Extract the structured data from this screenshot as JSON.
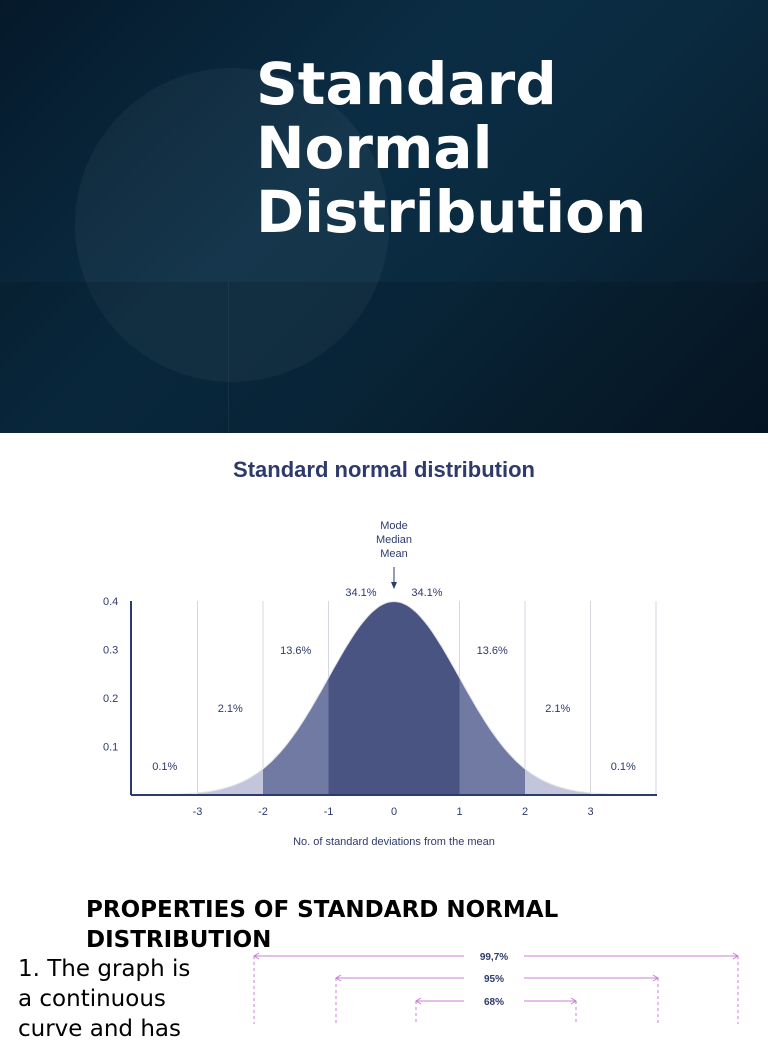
{
  "hero": {
    "title_lines": [
      "Standard",
      "Normal",
      "Distribution"
    ]
  },
  "chart_data": {
    "type": "area",
    "title": "Standard normal distribution",
    "xlabel": "No. of standard deviations from the mean",
    "ylabel": "",
    "x_ticks": [
      "-3",
      "-2",
      "-1",
      "0",
      "1",
      "2",
      "3"
    ],
    "y_ticks": [
      "0.1",
      "0.2",
      "0.3",
      "0.4"
    ],
    "xlim": [
      -4,
      4
    ],
    "ylim": [
      0,
      0.4
    ],
    "peak_annotation": [
      "Mode",
      "Median",
      "Mean"
    ],
    "regions": [
      {
        "from": -4,
        "to": -3,
        "percent": "0.1%",
        "color": "#ffffff"
      },
      {
        "from": -3,
        "to": -2,
        "percent": "2.1%",
        "color": "#c3c6da"
      },
      {
        "from": -2,
        "to": -1,
        "percent": "13.6%",
        "color": "#707aa2"
      },
      {
        "from": -1,
        "to": 0,
        "percent": "34.1%",
        "color": "#4a5482"
      },
      {
        "from": 0,
        "to": 1,
        "percent": "34.1%",
        "color": "#4a5482"
      },
      {
        "from": 1,
        "to": 2,
        "percent": "13.6%",
        "color": "#707aa2"
      },
      {
        "from": 2,
        "to": 3,
        "percent": "2.1%",
        "color": "#c3c6da"
      },
      {
        "from": 3,
        "to": 4,
        "percent": "0.1%",
        "color": "#ffffff"
      }
    ],
    "colors": {
      "axis": "#2e3a6b",
      "text": "#2e3a6b",
      "grid": "#d4d6e0"
    }
  },
  "properties": {
    "heading_lines": [
      "PROPERTIES OF STANDARD NORMAL",
      "DISTRIBUTION"
    ],
    "item1_lines": [
      "1. The graph is",
      "a continuous",
      "curve and has"
    ]
  },
  "empirical": {
    "labels": [
      "99,7%",
      "95%",
      "68%"
    ],
    "color": "#c77fd6"
  }
}
